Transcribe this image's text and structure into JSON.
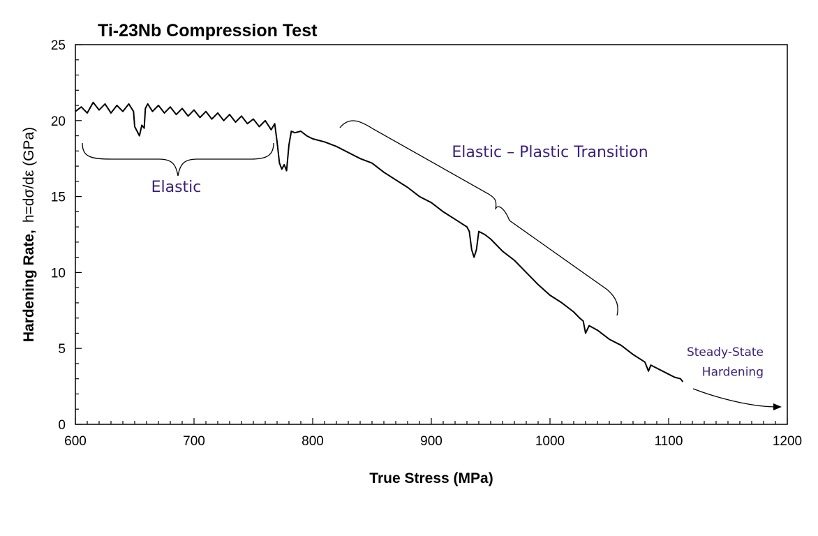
{
  "chart_data": {
    "type": "line",
    "title": "Ti-23Nb Compression Test",
    "xlabel": "True Stress (MPa)",
    "ylabel_main": "Hardening Rate,",
    "ylabel_sub": "h=dσ/dε (GPa)",
    "xlim": [
      600,
      1200
    ],
    "ylim": [
      0,
      25
    ],
    "x_ticks": [
      600,
      700,
      800,
      900,
      1000,
      1100,
      1200
    ],
    "y_ticks": [
      0,
      5,
      10,
      15,
      20,
      25
    ],
    "grid": false,
    "legend": "none",
    "series": [
      {
        "color": "#000000",
        "points": [
          [
            600,
            20.6
          ],
          [
            605,
            20.9
          ],
          [
            610,
            20.5
          ],
          [
            615,
            21.2
          ],
          [
            620,
            20.7
          ],
          [
            625,
            21.1
          ],
          [
            630,
            20.5
          ],
          [
            635,
            21.0
          ],
          [
            640,
            20.6
          ],
          [
            645,
            21.1
          ],
          [
            649,
            20.6
          ],
          [
            650,
            19.6
          ],
          [
            652,
            19.3
          ],
          [
            654,
            19.0
          ],
          [
            656,
            19.7
          ],
          [
            658,
            19.5
          ],
          [
            659,
            20.8
          ],
          [
            661,
            21.1
          ],
          [
            665,
            20.6
          ],
          [
            670,
            21.0
          ],
          [
            675,
            20.5
          ],
          [
            680,
            20.9
          ],
          [
            685,
            20.4
          ],
          [
            690,
            20.8
          ],
          [
            695,
            20.3
          ],
          [
            700,
            20.7
          ],
          [
            705,
            20.2
          ],
          [
            710,
            20.6
          ],
          [
            715,
            20.1
          ],
          [
            720,
            20.5
          ],
          [
            725,
            20.0
          ],
          [
            730,
            20.4
          ],
          [
            735,
            19.9
          ],
          [
            740,
            20.3
          ],
          [
            745,
            19.8
          ],
          [
            750,
            20.1
          ],
          [
            755,
            19.6
          ],
          [
            760,
            20.0
          ],
          [
            765,
            19.4
          ],
          [
            768,
            19.8
          ],
          [
            770,
            18.6
          ],
          [
            772,
            17.2
          ],
          [
            774,
            16.8
          ],
          [
            776,
            17.1
          ],
          [
            778,
            16.7
          ],
          [
            780,
            18.4
          ],
          [
            782,
            19.3
          ],
          [
            785,
            19.2
          ],
          [
            790,
            19.3
          ],
          [
            795,
            19.0
          ],
          [
            800,
            18.8
          ],
          [
            810,
            18.6
          ],
          [
            820,
            18.3
          ],
          [
            830,
            17.9
          ],
          [
            840,
            17.5
          ],
          [
            850,
            17.2
          ],
          [
            860,
            16.6
          ],
          [
            870,
            16.1
          ],
          [
            880,
            15.6
          ],
          [
            890,
            15.0
          ],
          [
            900,
            14.6
          ],
          [
            910,
            14.0
          ],
          [
            920,
            13.5
          ],
          [
            930,
            13.0
          ],
          [
            932,
            12.7
          ],
          [
            934,
            11.5
          ],
          [
            936,
            11.0
          ],
          [
            938,
            11.5
          ],
          [
            940,
            12.7
          ],
          [
            945,
            12.5
          ],
          [
            950,
            12.2
          ],
          [
            960,
            11.4
          ],
          [
            970,
            10.8
          ],
          [
            980,
            10.0
          ],
          [
            990,
            9.2
          ],
          [
            1000,
            8.5
          ],
          [
            1010,
            8.0
          ],
          [
            1020,
            7.4
          ],
          [
            1025,
            7.0
          ],
          [
            1028,
            6.8
          ],
          [
            1030,
            6.0
          ],
          [
            1033,
            6.5
          ],
          [
            1040,
            6.2
          ],
          [
            1050,
            5.6
          ],
          [
            1060,
            5.2
          ],
          [
            1070,
            4.6
          ],
          [
            1080,
            4.1
          ],
          [
            1083,
            3.5
          ],
          [
            1085,
            3.9
          ],
          [
            1090,
            3.7
          ],
          [
            1100,
            3.3
          ],
          [
            1105,
            3.1
          ],
          [
            1110,
            3.0
          ],
          [
            1112,
            2.8
          ]
        ]
      }
    ],
    "annotations": [
      {
        "text": "Elastic",
        "color": "#3b1f7a",
        "x": 685,
        "y": 15.3,
        "anchor": "middle",
        "size": 22
      },
      {
        "text": "Elastic – Plastic Transition",
        "color": "#3b1f7a",
        "x": 1000,
        "y": 17.6,
        "anchor": "middle",
        "size": 22
      },
      {
        "text": "Steady-State",
        "color": "#3b1f7a",
        "x": 1180,
        "y": 4.5,
        "anchor": "end",
        "size": 17
      },
      {
        "text": "Hardening",
        "color": "#3b1f7a",
        "x": 1180,
        "y": 3.2,
        "anchor": "end",
        "size": 17
      }
    ]
  }
}
